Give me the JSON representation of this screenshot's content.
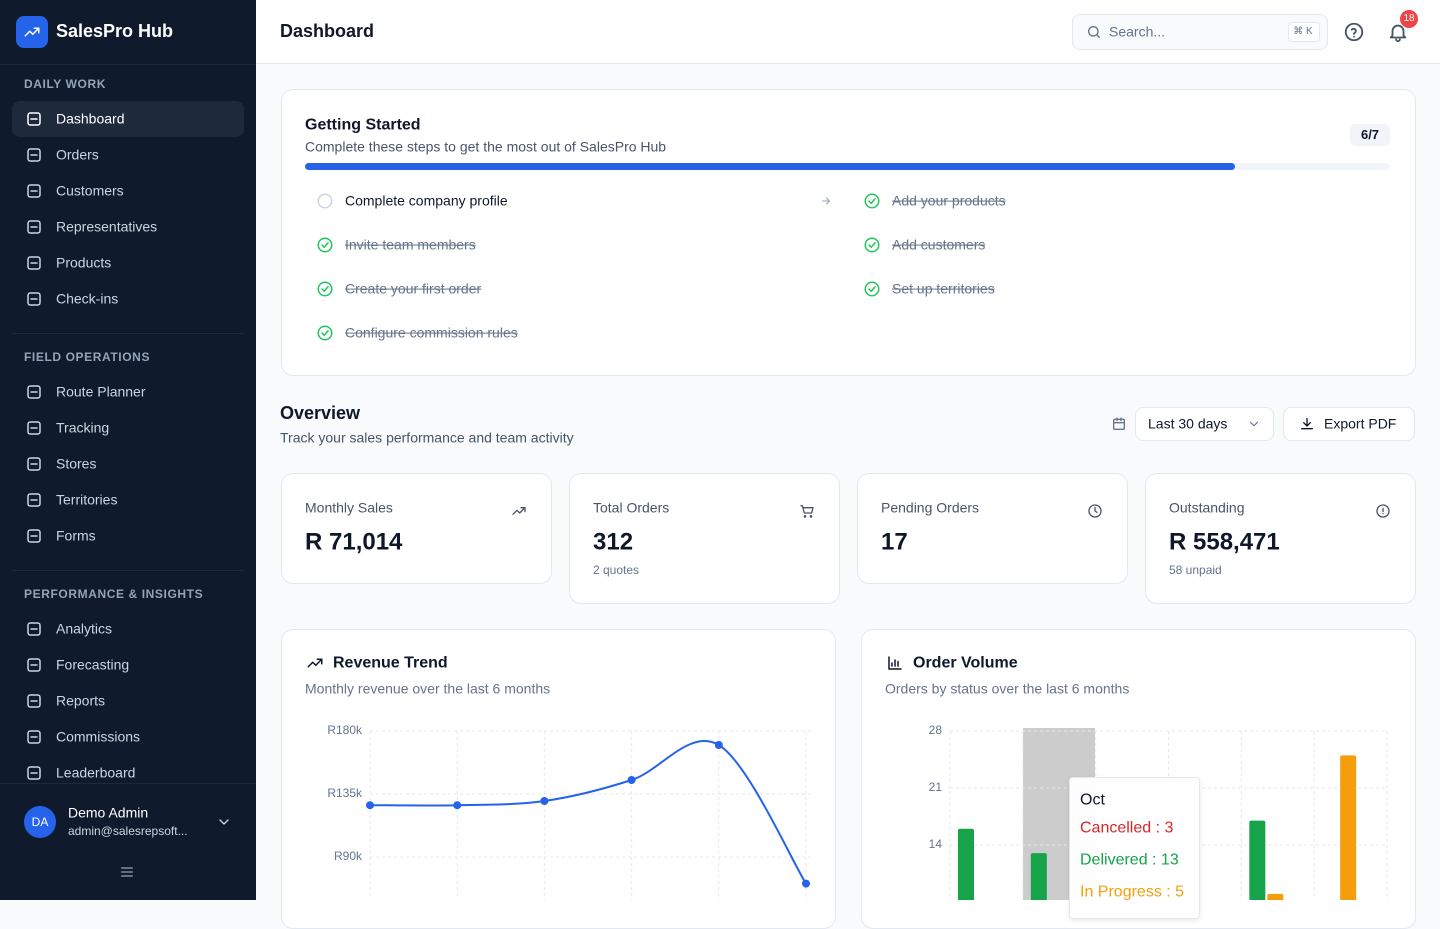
{
  "brand": "SalesPro Hub",
  "nav": [
    {
      "section": "DAILY WORK",
      "items": [
        "Dashboard",
        "Orders",
        "Customers",
        "Representatives",
        "Products",
        "Check-ins"
      ]
    },
    {
      "section": "FIELD OPERATIONS",
      "items": [
        "Route Planner",
        "Tracking",
        "Stores",
        "Territories",
        "Forms"
      ]
    },
    {
      "section": "PERFORMANCE & INSIGHTS",
      "items": [
        "Analytics",
        "Forecasting",
        "Reports",
        "Commissions",
        "Leaderboard"
      ]
    }
  ],
  "user": {
    "initials": "DA",
    "name": "Demo Admin",
    "email": "admin@salesrepsoft..."
  },
  "header": {
    "title": "Dashboard",
    "search_placeholder": "Search...",
    "shortcut": "⌘ K",
    "notifications": 18
  },
  "getting_started": {
    "title": "Getting Started",
    "subtitle": "Complete these steps to get the most out of SalesPro Hub",
    "progress_label": "6/7",
    "completed": 6,
    "total": 7,
    "steps": [
      {
        "label": "Complete company profile",
        "done": false
      },
      {
        "label": "Add your products",
        "done": true
      },
      {
        "label": "Invite team members",
        "done": true
      },
      {
        "label": "Add customers",
        "done": true
      },
      {
        "label": "Create your first order",
        "done": true
      },
      {
        "label": "Set up territories",
        "done": true
      },
      {
        "label": "Configure commission rules",
        "done": true
      }
    ]
  },
  "overview": {
    "title": "Overview",
    "subtitle": "Track your sales performance and team activity",
    "range": "Last 30 days",
    "export": "Export PDF"
  },
  "kpis": [
    {
      "label": "Monthly Sales",
      "value": "R 71,014"
    },
    {
      "label": "Total Orders",
      "value": "312",
      "note": "2 quotes"
    },
    {
      "label": "Pending Orders",
      "value": "17"
    },
    {
      "label": "Outstanding",
      "value": "R 558,471",
      "note": "58 unpaid"
    }
  ],
  "chart_data": [
    {
      "type": "line",
      "title": "Revenue Trend",
      "subtitle": "Monthly revenue over the last 6 months",
      "values": [
        127000,
        127000,
        130000,
        145000,
        170000,
        71014
      ],
      "color": "#2563eb",
      "ylim": [
        0,
        180000
      ],
      "yticks": [
        {
          "value": 90000,
          "label": "R90k"
        },
        {
          "value": 135000,
          "label": "R135k"
        },
        {
          "value": 180000,
          "label": "R180k"
        }
      ],
      "grid": true
    },
    {
      "type": "bar",
      "title": "Order Volume",
      "subtitle": "Orders by status over the last 6 months",
      "categories": [
        null,
        "Oct",
        null,
        null,
        null,
        null
      ],
      "series": [
        {
          "name": "Delivered",
          "color": "#16a34a",
          "values": [
            16,
            13,
            null,
            null,
            17,
            null
          ]
        },
        {
          "name": "In Progress",
          "color": "#f59e0b",
          "values": [
            null,
            5,
            null,
            null,
            8,
            25
          ]
        },
        {
          "name": "Cancelled",
          "color": "#dc2626",
          "values": [
            null,
            3,
            null,
            null,
            null,
            null
          ]
        }
      ],
      "ylim": [
        0,
        28
      ],
      "yticks": [
        14,
        21,
        28
      ],
      "grid": true,
      "tooltip": {
        "lines": [
          "Cancelled : 3",
          "Delivered : 13",
          "In Progress : 5"
        ]
      }
    }
  ]
}
